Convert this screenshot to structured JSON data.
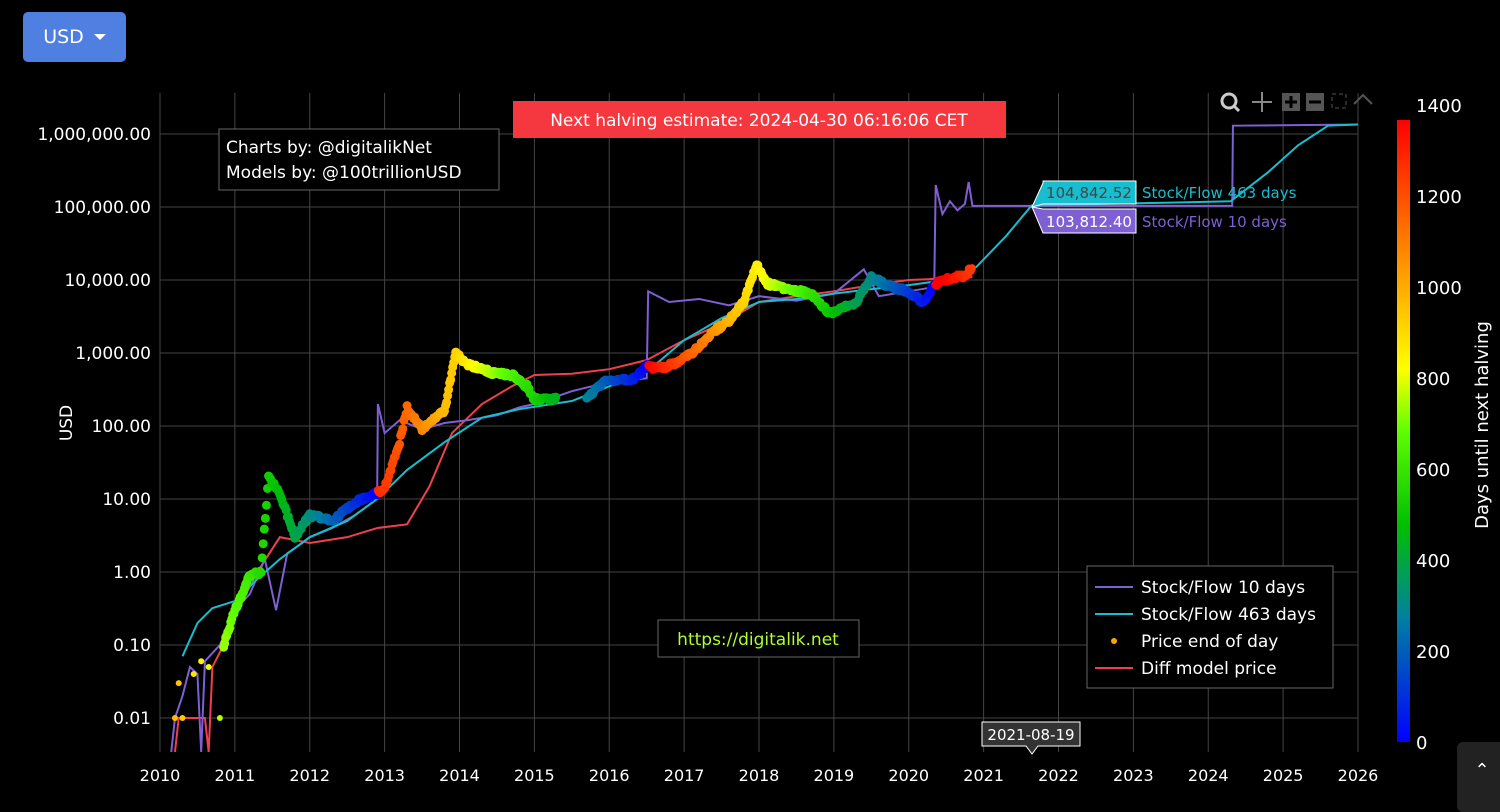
{
  "currency_button": {
    "label": "USD",
    "icon": "caret-down-icon"
  },
  "scroll_top_icon": "chevron-up-icon",
  "modebar": [
    "zoom-icon",
    "pan-icon",
    "zoom-in-icon",
    "zoom-out-icon",
    "autoscale-icon",
    "home-icon"
  ],
  "annotations": {
    "credits": [
      "Charts by: @digitalikNet",
      "Models by: @100trillionUSD"
    ],
    "halving": "Next halving estimate: 2024-04-30 06:16:06 CET",
    "site": "https://digitalik.net",
    "halving_color": "#f5383f"
  },
  "hover": {
    "date": "2021-08-19",
    "items": [
      {
        "value": "104,842.52",
        "name": "Stock/Flow 463 days",
        "color": "#17becf"
      },
      {
        "value": "103,812.40",
        "name": "Stock/Flow 10 days",
        "color": "#7f5fd4"
      }
    ]
  },
  "chart_data": {
    "type": "line",
    "ylabel": "USD",
    "yscale": "log",
    "ylim": [
      0.003,
      3000000
    ],
    "xlim": [
      2010,
      2026
    ],
    "x_ticks": [
      "2010",
      "2011",
      "2012",
      "2013",
      "2014",
      "2015",
      "2016",
      "2017",
      "2018",
      "2019",
      "2020",
      "2021",
      "2022",
      "2023",
      "2024",
      "2025",
      "2026"
    ],
    "y_ticks": [
      {
        "v": 0.01,
        "l": "0.01"
      },
      {
        "v": 0.1,
        "l": "0.10"
      },
      {
        "v": 1,
        "l": "1.00"
      },
      {
        "v": 10,
        "l": "10.00"
      },
      {
        "v": 100,
        "l": "100.00"
      },
      {
        "v": 1000,
        "l": "1,000.00"
      },
      {
        "v": 10000,
        "l": "10,000.00"
      },
      {
        "v": 100000,
        "l": "100,000.00"
      },
      {
        "v": 1000000,
        "l": "1,000,000.00"
      }
    ],
    "grid": true,
    "legend_position": "bottom-right",
    "colorbar": {
      "title": "Days until next halving",
      "range": [
        0,
        1400
      ],
      "ticks": [
        0,
        200,
        400,
        600,
        800,
        1000,
        1200,
        1400
      ]
    },
    "series": [
      {
        "name": "Stock/Flow 10 days",
        "color": "#7f5fd4",
        "kind": "line",
        "points": [
          [
            2010.15,
            0.003
          ],
          [
            2010.2,
            0.01
          ],
          [
            2010.3,
            0.02
          ],
          [
            2010.4,
            0.05
          ],
          [
            2010.5,
            0.04
          ],
          [
            2010.55,
            0.003
          ],
          [
            2010.6,
            0.06
          ],
          [
            2010.8,
            0.1
          ],
          [
            2011.0,
            0.3
          ],
          [
            2011.2,
            0.5
          ],
          [
            2011.4,
            1.5
          ],
          [
            2011.55,
            0.3
          ],
          [
            2011.7,
            1.8
          ],
          [
            2011.9,
            2.5
          ],
          [
            2012.0,
            3
          ],
          [
            2012.3,
            4
          ],
          [
            2012.6,
            6
          ],
          [
            2012.9,
            10
          ],
          [
            2012.91,
            200
          ],
          [
            2013.0,
            80
          ],
          [
            2013.2,
            120
          ],
          [
            2013.5,
            90
          ],
          [
            2013.8,
            110
          ],
          [
            2014.1,
            120
          ],
          [
            2014.5,
            140
          ],
          [
            2014.8,
            180
          ],
          [
            2015.0,
            200
          ],
          [
            2015.5,
            300
          ],
          [
            2016.0,
            400
          ],
          [
            2016.5,
            450
          ],
          [
            2016.52,
            7000
          ],
          [
            2016.8,
            5000
          ],
          [
            2017.2,
            5500
          ],
          [
            2017.6,
            4500
          ],
          [
            2018.0,
            6000
          ],
          [
            2018.5,
            5200
          ],
          [
            2019.0,
            6500
          ],
          [
            2019.4,
            14000
          ],
          [
            2019.6,
            6000
          ],
          [
            2020.0,
            7000
          ],
          [
            2020.34,
            8000
          ],
          [
            2020.36,
            200000
          ],
          [
            2020.45,
            80000
          ],
          [
            2020.55,
            120000
          ],
          [
            2020.65,
            90000
          ],
          [
            2020.75,
            110000
          ],
          [
            2020.8,
            220000
          ],
          [
            2020.85,
            103812
          ],
          [
            2021.64,
            103812
          ],
          [
            2024.32,
            103812
          ],
          [
            2024.33,
            1300000
          ],
          [
            2026,
            1350000
          ]
        ]
      },
      {
        "name": "Stock/Flow 463 days",
        "color": "#17becf",
        "kind": "line",
        "points": [
          [
            2010.3,
            0.07
          ],
          [
            2010.5,
            0.2
          ],
          [
            2010.7,
            0.32
          ],
          [
            2011.0,
            0.4
          ],
          [
            2011.3,
            0.8
          ],
          [
            2011.6,
            1.5
          ],
          [
            2012.0,
            3
          ],
          [
            2012.5,
            5
          ],
          [
            2012.9,
            10
          ],
          [
            2013.3,
            25
          ],
          [
            2013.8,
            60
          ],
          [
            2014.3,
            130
          ],
          [
            2014.8,
            170
          ],
          [
            2015.5,
            220
          ],
          [
            2016.0,
            350
          ],
          [
            2016.5,
            550
          ],
          [
            2017.0,
            1500
          ],
          [
            2017.5,
            3000
          ],
          [
            2018.0,
            5000
          ],
          [
            2018.5,
            5500
          ],
          [
            2019.0,
            6500
          ],
          [
            2019.5,
            7500
          ],
          [
            2020.0,
            8500
          ],
          [
            2020.5,
            10000
          ],
          [
            2020.9,
            15000
          ],
          [
            2021.3,
            40000
          ],
          [
            2021.64,
            104842
          ],
          [
            2022.5,
            110000
          ],
          [
            2023.5,
            115000
          ],
          [
            2024.3,
            120000
          ],
          [
            2024.8,
            300000
          ],
          [
            2025.2,
            700000
          ],
          [
            2025.6,
            1300000
          ],
          [
            2026,
            1350000
          ]
        ]
      },
      {
        "name": "Diff model price",
        "color": "#f0404f",
        "kind": "line",
        "points": [
          [
            2010.2,
            0.003
          ],
          [
            2010.25,
            0.01
          ],
          [
            2010.6,
            0.01
          ],
          [
            2010.65,
            0.003
          ],
          [
            2010.7,
            0.05
          ],
          [
            2010.85,
            0.1
          ],
          [
            2011.0,
            0.25
          ],
          [
            2011.3,
            1
          ],
          [
            2011.6,
            3
          ],
          [
            2012.0,
            2.5
          ],
          [
            2012.5,
            3
          ],
          [
            2012.9,
            4
          ],
          [
            2013.3,
            4.5
          ],
          [
            2013.6,
            15
          ],
          [
            2013.9,
            80
          ],
          [
            2014.3,
            200
          ],
          [
            2014.7,
            350
          ],
          [
            2015.0,
            500
          ],
          [
            2015.5,
            520
          ],
          [
            2016.0,
            600
          ],
          [
            2016.5,
            800
          ],
          [
            2017.0,
            1500
          ],
          [
            2017.5,
            2500
          ],
          [
            2018.0,
            5000
          ],
          [
            2018.5,
            6000
          ],
          [
            2019.0,
            7000
          ],
          [
            2019.5,
            8500
          ],
          [
            2020.0,
            10000
          ],
          [
            2020.5,
            10500
          ],
          [
            2020.85,
            11000
          ]
        ]
      },
      {
        "name": "Price end of day",
        "color": "#ffa500",
        "kind": "markers",
        "points": [
          [
            2010.2,
            0.01
          ],
          [
            2010.25,
            0.03
          ],
          [
            2010.3,
            0.01
          ],
          [
            2010.45,
            0.04
          ],
          [
            2010.55,
            0.06
          ],
          [
            2010.65,
            0.05
          ],
          [
            2010.8,
            0.01
          ],
          [
            2010.85,
            0.1
          ],
          [
            2011.0,
            0.3
          ],
          [
            2011.2,
            0.9
          ],
          [
            2011.35,
            1
          ],
          [
            2011.45,
            20
          ],
          [
            2011.6,
            12
          ],
          [
            2011.8,
            3
          ],
          [
            2012.0,
            6
          ],
          [
            2012.3,
            5
          ],
          [
            2012.6,
            9
          ],
          [
            2012.9,
            12
          ],
          [
            2013.0,
            14
          ],
          [
            2013.2,
            60
          ],
          [
            2013.3,
            180
          ],
          [
            2013.5,
            90
          ],
          [
            2013.8,
            160
          ],
          [
            2013.95,
            1000
          ],
          [
            2014.1,
            700
          ],
          [
            2014.4,
            550
          ],
          [
            2014.7,
            500
          ],
          [
            2014.9,
            350
          ],
          [
            2015.0,
            230
          ],
          [
            2015.3,
            240
          ],
          [
            2015.7,
            240
          ],
          [
            2015.95,
            430
          ],
          [
            2016.3,
            420
          ],
          [
            2016.5,
            650
          ],
          [
            2016.7,
            620
          ],
          [
            2016.9,
            750
          ],
          [
            2017.1,
            1000
          ],
          [
            2017.4,
            2000
          ],
          [
            2017.6,
            2800
          ],
          [
            2017.8,
            5000
          ],
          [
            2017.97,
            17000
          ],
          [
            2018.1,
            9000
          ],
          [
            2018.4,
            7500
          ],
          [
            2018.7,
            6500
          ],
          [
            2018.9,
            3800
          ],
          [
            2019.0,
            3600
          ],
          [
            2019.3,
            5000
          ],
          [
            2019.5,
            11000
          ],
          [
            2019.7,
            8500
          ],
          [
            2019.95,
            7200
          ],
          [
            2020.2,
            5000
          ],
          [
            2020.36,
            8800
          ],
          [
            2020.6,
            11000
          ],
          [
            2020.75,
            11500
          ],
          [
            2020.85,
            15000
          ]
        ]
      }
    ]
  }
}
